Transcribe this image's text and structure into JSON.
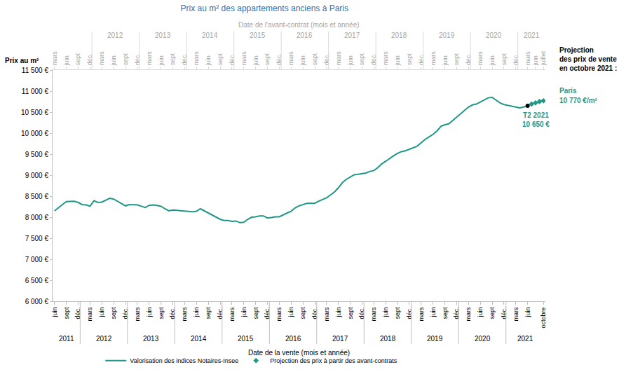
{
  "chart_data": {
    "type": "line",
    "title": "Prix au m² des appartements anciens à Paris",
    "y_label": "Prix au m²",
    "x_label": "Date de la vente (mois et année)",
    "top_x_label": "Date de l'avant-contrat (mois et année)",
    "categories": [
      "juin",
      null,
      null,
      "sept",
      null,
      null,
      "déc.",
      null,
      null,
      "mars",
      null,
      null,
      "juin",
      null,
      null,
      "sept",
      null,
      null,
      "déc.",
      null,
      null,
      "mars",
      null,
      null,
      "juin",
      null,
      null,
      "sept",
      null,
      null,
      "déc.",
      null,
      null,
      "mars",
      null,
      null,
      "juin",
      null,
      null,
      "sept",
      null,
      null,
      "déc.",
      null,
      null,
      "mars",
      null,
      null,
      "juin",
      null,
      null,
      "sept",
      null,
      null,
      "déc.",
      null,
      null,
      "mars",
      null,
      null,
      "juin",
      null,
      null,
      "sept",
      null,
      null,
      "déc.",
      null,
      null,
      "mars",
      null,
      null,
      "juin",
      null,
      null,
      "sept",
      null,
      null,
      "déc.",
      null,
      null,
      "mars",
      null,
      null,
      "juin",
      null,
      null,
      "sept",
      null,
      null,
      "déc.",
      null,
      null,
      "mars",
      null,
      null,
      "juin",
      null,
      null,
      "sept",
      null,
      null,
      "déc.",
      null,
      null,
      "mars",
      null,
      null,
      "juin",
      null,
      null,
      "sept",
      null,
      null,
      "déc.",
      null,
      null,
      "mars",
      null,
      null,
      "juin",
      null,
      null,
      null,
      "octobre"
    ],
    "top_categories": [
      "mars",
      null,
      null,
      "juin",
      null,
      null,
      "sept",
      null,
      null,
      "déc.",
      null,
      null,
      "mars",
      null,
      null,
      "juin",
      null,
      null,
      "sept",
      null,
      null,
      "déc.",
      null,
      null,
      "mars",
      null,
      null,
      "juin",
      null,
      null,
      "sept",
      null,
      null,
      "déc.",
      null,
      null,
      "mars",
      null,
      null,
      "juin",
      null,
      null,
      "sept",
      null,
      null,
      "déc.",
      null,
      null,
      "mars",
      null,
      null,
      "juin",
      null,
      null,
      "sept",
      null,
      null,
      "déc.",
      null,
      null,
      "mars",
      null,
      null,
      "juin",
      null,
      null,
      "sept",
      null,
      null,
      "déc.",
      null,
      null,
      "mars",
      null,
      null,
      "juin",
      null,
      null,
      "sept",
      null,
      null,
      "déc.",
      null,
      null,
      "mars",
      null,
      null,
      "juin",
      null,
      null,
      "sept",
      null,
      null,
      "déc.",
      null,
      null,
      "mars",
      null,
      null,
      "juin",
      null,
      null,
      "sept",
      null,
      null,
      "déc.",
      null,
      null,
      "mars",
      null,
      null,
      "juin",
      null,
      null,
      "sept",
      null,
      null,
      "déc.",
      null,
      null,
      "mars",
      null,
      "juin",
      null,
      "juillet"
    ],
    "year_groups": [
      {
        "label": "2011",
        "first": 0,
        "last": 6
      },
      {
        "label": "2012",
        "first": 7,
        "last": 18
      },
      {
        "label": "2013",
        "first": 19,
        "last": 30
      },
      {
        "label": "2014",
        "first": 31,
        "last": 42
      },
      {
        "label": "2015",
        "first": 43,
        "last": 54
      },
      {
        "label": "2016",
        "first": 55,
        "last": 66
      },
      {
        "label": "2017",
        "first": 67,
        "last": 78
      },
      {
        "label": "2018",
        "first": 79,
        "last": 90
      },
      {
        "label": "2019",
        "first": 91,
        "last": 102
      },
      {
        "label": "2020",
        "first": 103,
        "last": 114
      },
      {
        "label": "2021",
        "first": 115,
        "last": 124
      }
    ],
    "top_year_groups": [
      {
        "label": "2012",
        "first": 10,
        "last": 21
      },
      {
        "label": "2013",
        "first": 22,
        "last": 33
      },
      {
        "label": "2014",
        "first": 34,
        "last": 45
      },
      {
        "label": "2015",
        "first": 46,
        "last": 57
      },
      {
        "label": "2016",
        "first": 58,
        "last": 69
      },
      {
        "label": "2017",
        "first": 70,
        "last": 81
      },
      {
        "label": "2018",
        "first": 82,
        "last": 93
      },
      {
        "label": "2019",
        "first": 94,
        "last": 105
      },
      {
        "label": "2020",
        "first": 106,
        "last": 117
      },
      {
        "label": "2021",
        "first": 118,
        "last": 124
      }
    ],
    "series": [
      {
        "name": "Valorisation des indices Notaires-Insee",
        "type": "line",
        "line_style": "solid",
        "color": "#1f9887",
        "values": [
          8150,
          8230,
          8300,
          8370,
          8380,
          8380,
          8350,
          8300,
          8290,
          8260,
          8390,
          8350,
          8360,
          8410,
          8450,
          8430,
          8380,
          8320,
          8270,
          8300,
          8300,
          8290,
          8260,
          8230,
          8280,
          8290,
          8280,
          8260,
          8200,
          8150,
          8170,
          8160,
          8150,
          8140,
          8130,
          8130,
          8140,
          8200,
          8150,
          8100,
          8060,
          8000,
          7950,
          7920,
          7920,
          7900,
          7910,
          7870,
          7880,
          7950,
          8000,
          8010,
          8030,
          8030,
          7980,
          7990,
          8010,
          8010,
          8060,
          8100,
          8140,
          8220,
          8270,
          8300,
          8330,
          8330,
          8330,
          8380,
          8420,
          8460,
          8530,
          8600,
          8700,
          8820,
          8900,
          8950,
          9010,
          9020,
          9040,
          9050,
          9090,
          9110,
          9180,
          9270,
          9330,
          9400,
          9460,
          9520,
          9560,
          9580,
          9620,
          9660,
          9690,
          9770,
          9850,
          9910,
          9970,
          10050,
          10160,
          10200,
          10220,
          10300,
          10380,
          10460,
          10530,
          10620,
          10670,
          10690,
          10740,
          10790,
          10840,
          10850,
          10780,
          10720,
          10680,
          10660,
          10640,
          10620,
          10600,
          10620,
          10650,
          null,
          null,
          null,
          null
        ]
      },
      {
        "name": "Projection des prix à partir des avant-contrats",
        "type": "scatter",
        "marker": "diamond",
        "color": "#1f9887",
        "values": [
          null,
          null,
          null,
          null,
          null,
          null,
          null,
          null,
          null,
          null,
          null,
          null,
          null,
          null,
          null,
          null,
          null,
          null,
          null,
          null,
          null,
          null,
          null,
          null,
          null,
          null,
          null,
          null,
          null,
          null,
          null,
          null,
          null,
          null,
          null,
          null,
          null,
          null,
          null,
          null,
          null,
          null,
          null,
          null,
          null,
          null,
          null,
          null,
          null,
          null,
          null,
          null,
          null,
          null,
          null,
          null,
          null,
          null,
          null,
          null,
          null,
          null,
          null,
          null,
          null,
          null,
          null,
          null,
          null,
          null,
          null,
          null,
          null,
          null,
          null,
          null,
          null,
          null,
          null,
          null,
          null,
          null,
          null,
          null,
          null,
          null,
          null,
          null,
          null,
          null,
          null,
          null,
          null,
          null,
          null,
          null,
          null,
          null,
          null,
          null,
          null,
          null,
          null,
          null,
          null,
          null,
          null,
          null,
          null,
          null,
          null,
          null,
          null,
          null,
          null,
          null,
          null,
          null,
          null,
          null,
          null,
          10690,
          10720,
          10750,
          10770
        ]
      }
    ],
    "ylim": [
      6000,
      11500
    ],
    "yticks": [
      {
        "value": 6000,
        "label": "6 000 €"
      },
      {
        "value": 6500,
        "label": "6 500 €"
      },
      {
        "value": 7000,
        "label": "7 000 €"
      },
      {
        "value": 7500,
        "label": "7 500 €"
      },
      {
        "value": 8000,
        "label": "8 000 €"
      },
      {
        "value": 8500,
        "label": "8 500 €"
      },
      {
        "value": 9000,
        "label": "9 000 €"
      },
      {
        "value": 9500,
        "label": "9 500 €"
      },
      {
        "value": 10000,
        "label": "10 000 €"
      },
      {
        "value": 10500,
        "label": "10 500 €"
      },
      {
        "value": 11000,
        "label": "11 000 €"
      },
      {
        "value": 11500,
        "label": "11 500 €"
      }
    ],
    "grid": false,
    "point_annotation": {
      "text": "T2 2021",
      "value_label": "10 650 €",
      "x": 120,
      "value": 10650
    },
    "projection_note": {
      "lines": [
        "Projection",
        "des prix de vente",
        "en octobre 2021 :"
      ],
      "label": "Paris",
      "value_label": "10 770 €/m²",
      "value": 10770
    }
  }
}
